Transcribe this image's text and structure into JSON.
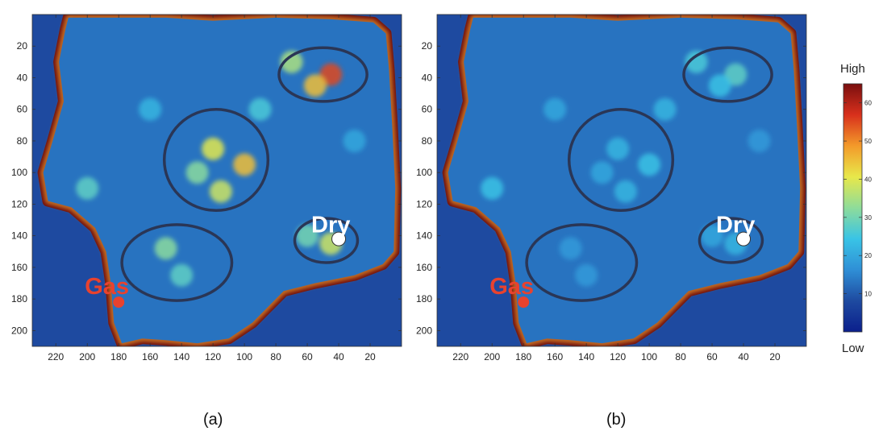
{
  "colors": {
    "background_low": "#1e4aa0",
    "high": "#6e0e0e",
    "gas_marker": "#e8422e",
    "dry_marker": "#ffffff",
    "ellipse": "#2a3656"
  },
  "colorbar": {
    "high_label": "High",
    "low_label": "Low",
    "ticks": [
      "10",
      "20",
      "30",
      "40",
      "50",
      "60"
    ],
    "range": [
      0,
      65
    ],
    "stops": [
      "#0b1f8c",
      "#1e4aa0",
      "#2f8fd6",
      "#39c4e6",
      "#8edc9a",
      "#e8e84a",
      "#f39a2a",
      "#d8301c",
      "#7a0f0f"
    ]
  },
  "chart_data": [
    {
      "type": "heatmap",
      "panel_label": "(a)",
      "x_ticks": [
        "220",
        "200",
        "180",
        "160",
        "140",
        "120",
        "100",
        "80",
        "60",
        "40",
        "20"
      ],
      "y_ticks": [
        "20",
        "40",
        "60",
        "80",
        "100",
        "120",
        "140",
        "160",
        "180",
        "200"
      ],
      "xlim": [
        235,
        0
      ],
      "ylim": [
        0,
        210
      ],
      "wells": [
        {
          "name": "Gas",
          "x": 180,
          "y": 182
        },
        {
          "name": "Dry",
          "x": 40,
          "y": 142
        }
      ],
      "ellipses": [
        {
          "cx": 50,
          "cy": 38,
          "rx": 28,
          "ry": 17
        },
        {
          "cx": 118,
          "cy": 92,
          "rx": 33,
          "ry": 32
        },
        {
          "cx": 143,
          "cy": 157,
          "rx": 35,
          "ry": 24
        },
        {
          "cx": 48,
          "cy": 143,
          "rx": 20,
          "ry": 14
        }
      ],
      "hotspots": [
        {
          "x": 45,
          "y": 38,
          "v": 55
        },
        {
          "x": 55,
          "y": 45,
          "v": 45
        },
        {
          "x": 70,
          "y": 30,
          "v": 35
        },
        {
          "x": 120,
          "y": 85,
          "v": 40
        },
        {
          "x": 100,
          "y": 95,
          "v": 45
        },
        {
          "x": 130,
          "y": 100,
          "v": 32
        },
        {
          "x": 115,
          "y": 112,
          "v": 38
        },
        {
          "x": 150,
          "y": 148,
          "v": 32
        },
        {
          "x": 140,
          "y": 165,
          "v": 28
        },
        {
          "x": 45,
          "y": 145,
          "v": 38
        },
        {
          "x": 60,
          "y": 140,
          "v": 30
        },
        {
          "x": 200,
          "y": 110,
          "v": 28
        },
        {
          "x": 160,
          "y": 60,
          "v": 22
        },
        {
          "x": 90,
          "y": 60,
          "v": 26
        },
        {
          "x": 30,
          "y": 80,
          "v": 20
        }
      ]
    },
    {
      "type": "heatmap",
      "panel_label": "(b)",
      "x_ticks": [
        "220",
        "200",
        "180",
        "160",
        "140",
        "120",
        "100",
        "80",
        "60",
        "40",
        "20"
      ],
      "y_ticks": [
        "20",
        "40",
        "60",
        "80",
        "100",
        "120",
        "140",
        "160",
        "180",
        "200"
      ],
      "xlim": [
        235,
        0
      ],
      "ylim": [
        0,
        210
      ],
      "wells": [
        {
          "name": "Gas",
          "x": 180,
          "y": 182
        },
        {
          "name": "Dry",
          "x": 40,
          "y": 142
        }
      ],
      "ellipses": [
        {
          "cx": 50,
          "cy": 38,
          "rx": 28,
          "ry": 17
        },
        {
          "cx": 118,
          "cy": 92,
          "rx": 33,
          "ry": 32
        },
        {
          "cx": 143,
          "cy": 157,
          "rx": 35,
          "ry": 24
        },
        {
          "cx": 48,
          "cy": 143,
          "rx": 20,
          "ry": 14
        }
      ],
      "hotspots": [
        {
          "x": 45,
          "y": 38,
          "v": 28
        },
        {
          "x": 55,
          "y": 45,
          "v": 24
        },
        {
          "x": 70,
          "y": 30,
          "v": 26
        },
        {
          "x": 120,
          "y": 85,
          "v": 22
        },
        {
          "x": 100,
          "y": 95,
          "v": 24
        },
        {
          "x": 130,
          "y": 100,
          "v": 20
        },
        {
          "x": 115,
          "y": 112,
          "v": 22
        },
        {
          "x": 150,
          "y": 148,
          "v": 18
        },
        {
          "x": 140,
          "y": 165,
          "v": 18
        },
        {
          "x": 45,
          "y": 145,
          "v": 22
        },
        {
          "x": 60,
          "y": 140,
          "v": 20
        },
        {
          "x": 200,
          "y": 110,
          "v": 24
        },
        {
          "x": 160,
          "y": 60,
          "v": 20
        },
        {
          "x": 90,
          "y": 60,
          "v": 22
        },
        {
          "x": 30,
          "y": 80,
          "v": 18
        }
      ]
    }
  ]
}
